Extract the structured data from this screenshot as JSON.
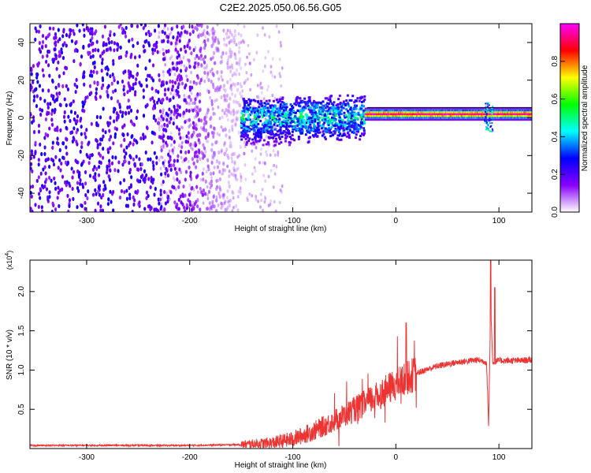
{
  "title": "C2E2.2025.050.06.56.G05",
  "chart_data": [
    {
      "type": "heatmap",
      "xlabel": "Height of straight line (km)",
      "ylabel": "Frequency (Hz)",
      "xlim": [
        -355,
        132
      ],
      "ylim": [
        -50,
        50
      ],
      "xticks": [
        -300,
        -200,
        -100,
        0,
        100
      ],
      "yticks": [
        -40,
        -20,
        0,
        20,
        40
      ],
      "colorbar": {
        "label": "Normalized spectral amplitude",
        "range": [
          0.0,
          1.0
        ],
        "ticks": [
          0.0,
          0.2,
          0.4,
          0.6,
          0.8
        ],
        "tick_labels": [
          "0.0",
          "0.2",
          "0.4",
          "0.6",
          "0.8"
        ],
        "colormap": [
          "#ffffff",
          "#8800ff",
          "#0000ff",
          "#00ffff",
          "#00ff00",
          "#ffff00",
          "#ff0000",
          "#ff00ff"
        ]
      },
      "features": [
        {
          "region": "noise",
          "x_range": [
            -355,
            -150
          ],
          "freq_range": [
            -50,
            50
          ],
          "amplitude": 0.1
        },
        {
          "region": "transition",
          "x_range": [
            -150,
            -30
          ],
          "freq_range": [
            -12,
            12
          ],
          "amplitude": 0.35
        },
        {
          "region": "carrier",
          "x_range": [
            -30,
            132
          ],
          "freq_center": 2,
          "amplitude": 0.9
        }
      ]
    },
    {
      "type": "line",
      "xlabel": "Height of straight line (km)",
      "ylabel": "SNR (10 * v/v)",
      "y_scale_label": "(x10",
      "y_scale_exp": "4",
      "xlim": [
        -355,
        132
      ],
      "ylim": [
        0,
        2.4
      ],
      "xticks": [
        -300,
        -200,
        -100,
        0,
        100
      ],
      "yticks": [
        0.5,
        1.0,
        1.5,
        2.0
      ],
      "ytick_labels": [
        "0.5",
        "1.0",
        "1.5",
        "2.0"
      ],
      "color": "#ee3333",
      "series": [
        {
          "x": [
            -355,
            -300,
            -250,
            -200,
            -150,
            -120,
            -100,
            -80,
            -60,
            -40,
            -20,
            0,
            20,
            40,
            60,
            80,
            88,
            90,
            92,
            94,
            100,
            120,
            132
          ],
          "y": [
            0.04,
            0.04,
            0.04,
            0.04,
            0.05,
            0.07,
            0.12,
            0.22,
            0.35,
            0.5,
            0.65,
            0.82,
            0.96,
            1.05,
            1.1,
            1.13,
            1.1,
            0.3,
            1.8,
            1.1,
            1.12,
            1.12,
            1.13
          ]
        }
      ]
    }
  ]
}
